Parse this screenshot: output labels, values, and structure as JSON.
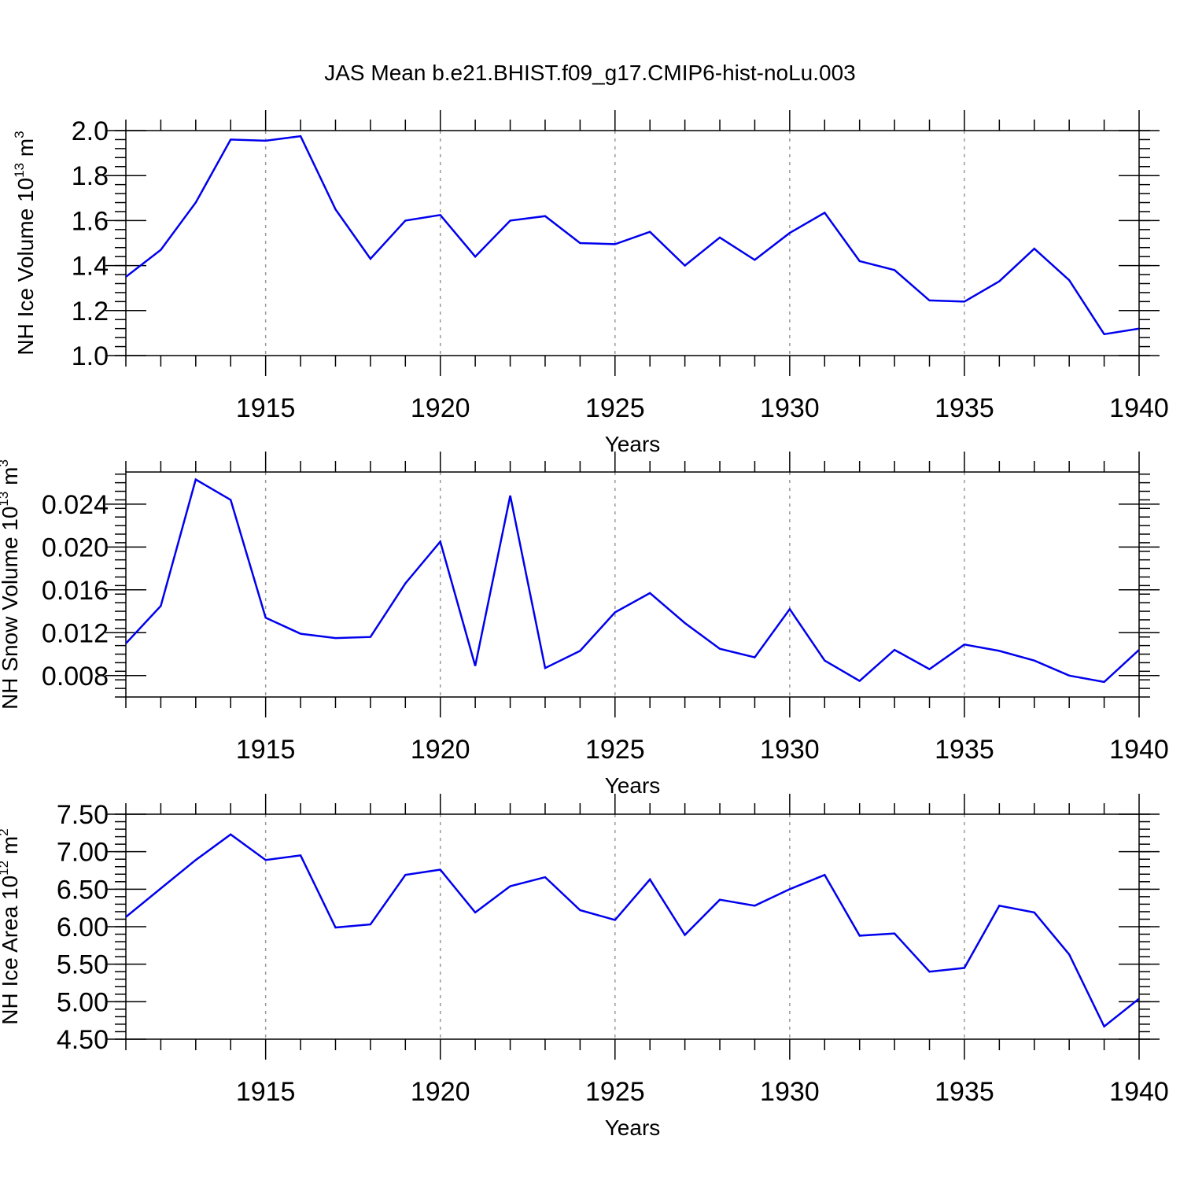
{
  "figure": {
    "title": "JAS Mean b.e21.BHIST.f09_g17.CMIP6-hist-noLu.003"
  },
  "chart_data": [
    {
      "type": "line",
      "xlabel": "Years",
      "ylabel": {
        "main": "NH Ice Volume 10",
        "sup": "13",
        "mid": " m",
        "sup2": "3"
      },
      "xlim": [
        1911,
        1940
      ],
      "ylim": [
        1.0,
        2.0
      ],
      "xticks": [
        1915,
        1920,
        1925,
        1930,
        1935,
        1940
      ],
      "yticks": [
        1.0,
        1.2,
        1.4,
        1.6,
        1.8,
        2.0
      ],
      "ytick_labels": [
        "1.0",
        "1.2",
        "1.4",
        "1.6",
        "1.8",
        "2.0"
      ],
      "yminor_step": 0.04,
      "grid": "vertical dashed at major x ticks",
      "color": "#0000ee",
      "x": [
        1911,
        1912,
        1913,
        1914,
        1915,
        1916,
        1917,
        1918,
        1919,
        1920,
        1921,
        1922,
        1923,
        1924,
        1925,
        1926,
        1927,
        1928,
        1929,
        1930,
        1931,
        1932,
        1933,
        1934,
        1935,
        1936,
        1937,
        1938,
        1939,
        1940
      ],
      "values": [
        1.35,
        1.47,
        1.68,
        1.96,
        1.955,
        1.975,
        1.65,
        1.43,
        1.6,
        1.625,
        1.44,
        1.6,
        1.62,
        1.5,
        1.495,
        1.55,
        1.4,
        1.525,
        1.425,
        1.545,
        1.635,
        1.42,
        1.38,
        1.245,
        1.24,
        1.33,
        1.475,
        1.335,
        1.095,
        1.12
      ]
    },
    {
      "type": "line",
      "xlabel": "Years",
      "ylabel": {
        "main": "NH Snow Volume 10",
        "sup": "13",
        "mid": " m",
        "sup2": "3"
      },
      "xlim": [
        1911,
        1940
      ],
      "ylim": [
        0.006,
        0.027
      ],
      "xticks": [
        1915,
        1920,
        1925,
        1930,
        1935,
        1940
      ],
      "yticks": [
        0.008,
        0.012,
        0.016,
        0.02,
        0.024
      ],
      "ytick_labels": [
        "0.008",
        "0.012",
        "0.016",
        "0.020",
        "0.024"
      ],
      "yminor_step": 0.0008,
      "grid": "vertical dashed at major x ticks",
      "color": "#0000ee",
      "x": [
        1911,
        1912,
        1913,
        1914,
        1915,
        1916,
        1917,
        1918,
        1919,
        1920,
        1921,
        1922,
        1923,
        1924,
        1925,
        1926,
        1927,
        1928,
        1929,
        1930,
        1931,
        1932,
        1933,
        1934,
        1935,
        1936,
        1937,
        1938,
        1939,
        1940
      ],
      "values": [
        0.011,
        0.0145,
        0.0263,
        0.0244,
        0.0134,
        0.0119,
        0.0115,
        0.0116,
        0.0166,
        0.0205,
        0.0089,
        0.0248,
        0.0087,
        0.0103,
        0.0139,
        0.0157,
        0.0129,
        0.0105,
        0.0097,
        0.0142,
        0.0094,
        0.0075,
        0.0104,
        0.0086,
        0.0109,
        0.0103,
        0.0094,
        0.008,
        0.0074,
        0.0104
      ]
    },
    {
      "type": "line",
      "xlabel": "Years",
      "ylabel": {
        "main": "NH Ice Area 10",
        "sup": "12",
        "mid": " m",
        "sup2": "2"
      },
      "xlim": [
        1911,
        1940
      ],
      "ylim": [
        4.5,
        7.5
      ],
      "xticks": [
        1915,
        1920,
        1925,
        1930,
        1935,
        1940
      ],
      "yticks": [
        4.5,
        5.0,
        5.5,
        6.0,
        6.5,
        7.0,
        7.5
      ],
      "ytick_labels": [
        "4.50",
        "5.00",
        "5.50",
        "6.00",
        "6.50",
        "7.00",
        "7.50"
      ],
      "yminor_step": 0.1,
      "grid": "vertical dashed at major x ticks",
      "color": "#0000ee",
      "x": [
        1911,
        1912,
        1913,
        1914,
        1915,
        1916,
        1917,
        1918,
        1919,
        1920,
        1921,
        1922,
        1923,
        1924,
        1925,
        1926,
        1927,
        1928,
        1929,
        1930,
        1931,
        1932,
        1933,
        1934,
        1935,
        1936,
        1937,
        1938,
        1939,
        1940
      ],
      "values": [
        6.13,
        6.51,
        6.89,
        7.23,
        6.89,
        6.95,
        5.99,
        6.03,
        6.69,
        6.76,
        6.19,
        6.54,
        6.66,
        6.22,
        6.09,
        6.63,
        5.89,
        6.36,
        6.28,
        6.5,
        6.69,
        5.88,
        5.91,
        5.4,
        5.45,
        6.28,
        6.19,
        5.63,
        4.67,
        5.04
      ]
    }
  ]
}
